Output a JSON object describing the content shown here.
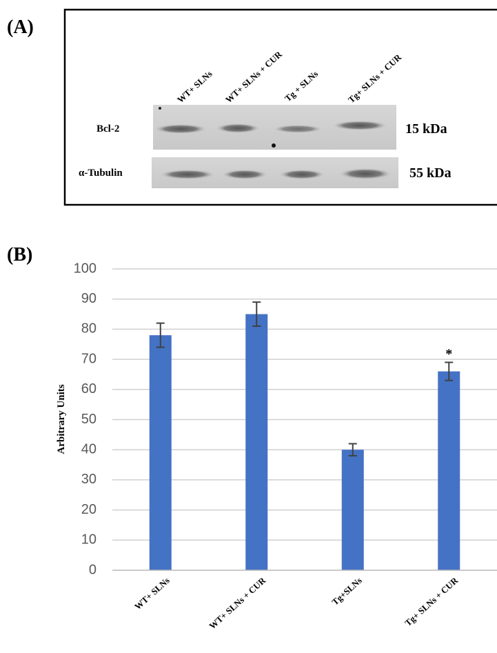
{
  "panel_a": {
    "label": "(A)",
    "lanes": [
      "WT+ SLNs",
      "WT+ SLNs + CUR",
      "Tg + SLNs",
      "Tg+ SLNs + CUR"
    ],
    "rows": [
      {
        "name": "Bcl-2",
        "size": "15 kDa"
      },
      {
        "name": "α-Tubulin",
        "size": "55 kDa"
      }
    ]
  },
  "chart_data": {
    "type": "bar",
    "panel_label": "(B)",
    "y_label": "Arbitrary Units",
    "categories": [
      "WT+ SLNs",
      "WT+ SLNs + CUR",
      "Tg+SLNs",
      "Tg+ SLNs + CUR"
    ],
    "values": [
      78,
      85,
      40,
      66
    ],
    "errors": [
      4,
      4,
      2,
      3
    ],
    "color": "#4472c4",
    "annotations": [
      {
        "text": "*",
        "category": "Tg+ SLNs + CUR"
      }
    ],
    "ylim": [
      0,
      100
    ],
    "yticks": [
      0,
      10,
      20,
      30,
      40,
      50,
      60,
      70,
      80,
      90,
      100
    ],
    "grid": true
  }
}
